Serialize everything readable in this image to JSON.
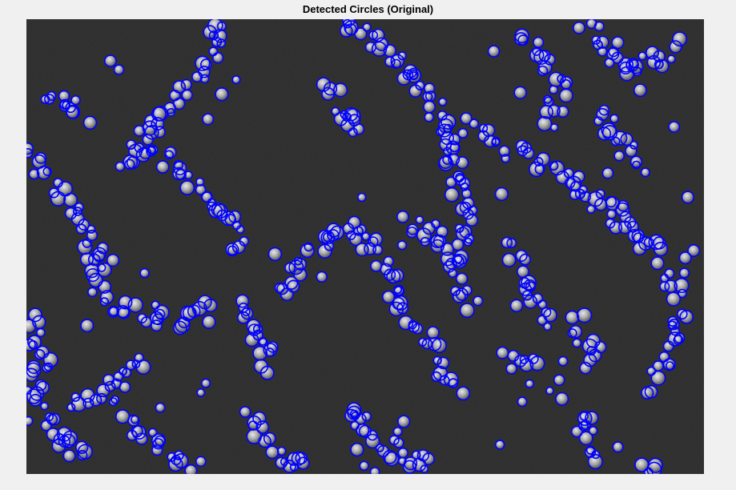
{
  "figure": {
    "title": "Detected Circles (Original)"
  },
  "image": {
    "description_role": "grayscale micrograph of cell clusters with detected circles overlaid",
    "background_color": "#2a2a2a",
    "cell_color": "#bdbdbd",
    "circle_color": "#0000ff"
  }
}
